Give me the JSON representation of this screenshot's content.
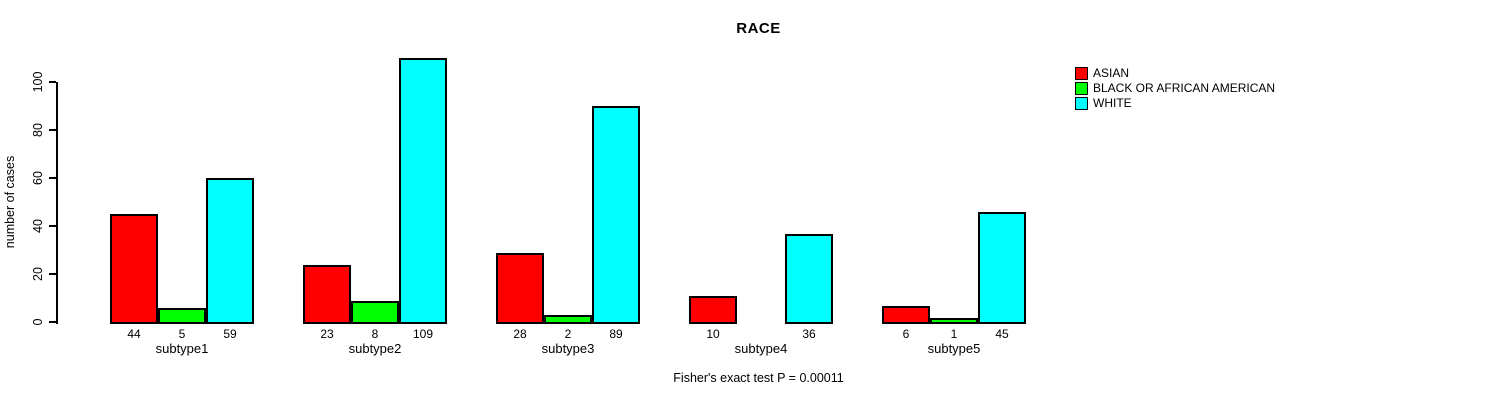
{
  "chart_data": {
    "type": "bar",
    "title": "RACE",
    "xlabel": "",
    "ylabel": "number of cases",
    "annotation": "Fisher's exact test P = 0.00011",
    "ylim": [
      0,
      110
    ],
    "yticks": [
      0,
      20,
      40,
      60,
      80,
      100
    ],
    "grid": false,
    "legend_position": "top-right-outside",
    "bar_value_labels_shown": true,
    "categories": [
      "subtype1",
      "subtype2",
      "subtype3",
      "subtype4",
      "subtype5"
    ],
    "series": [
      {
        "name": "ASIAN",
        "color": "#ff0000",
        "values": [
          44,
          23,
          28,
          10,
          6
        ]
      },
      {
        "name": "BLACK OR AFRICAN AMERICAN",
        "color": "#00ff00",
        "values": [
          5,
          8,
          2,
          0,
          1
        ]
      },
      {
        "name": "WHITE",
        "color": "#00ffff",
        "values": [
          59,
          109,
          89,
          36,
          45
        ]
      }
    ]
  }
}
